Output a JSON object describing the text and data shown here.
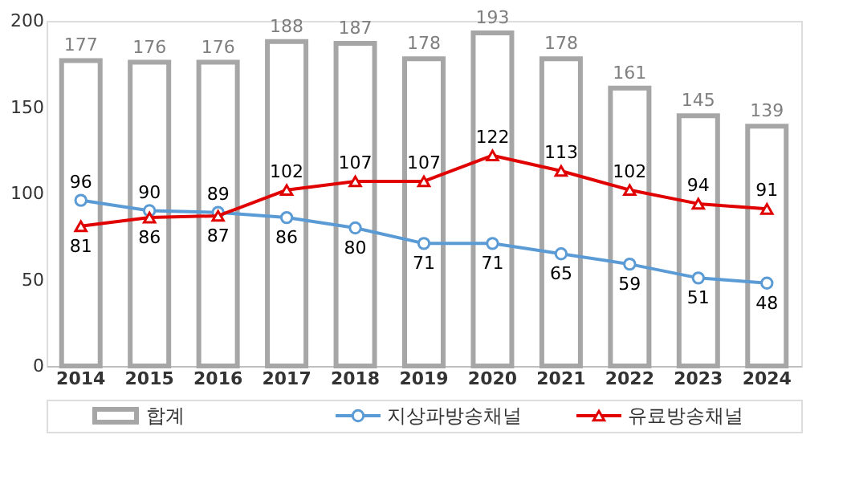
{
  "chart_data": {
    "type": "bar",
    "categories": [
      "2014",
      "2015",
      "2016",
      "2017",
      "2018",
      "2019",
      "2020",
      "2021",
      "2022",
      "2023",
      "2024"
    ],
    "series": [
      {
        "name": "합계",
        "color": "#a6a6a6",
        "values": [
          177,
          176,
          176,
          188,
          187,
          178,
          193,
          178,
          161,
          145,
          139
        ]
      },
      {
        "name": "지상파방송채널",
        "type": "line",
        "marker": "circle",
        "color": "#5b9bd5",
        "values": [
          96,
          90,
          89,
          86,
          80,
          71,
          71,
          65,
          59,
          51,
          48
        ]
      },
      {
        "name": "유료방송채널",
        "type": "line",
        "marker": "triangle",
        "color": "#e00000",
        "values": [
          81,
          86,
          87,
          102,
          107,
          107,
          122,
          113,
          102,
          94,
          91
        ]
      }
    ],
    "ylim": [
      0,
      200
    ],
    "yticks": [
      0,
      50,
      100,
      150,
      200
    ],
    "grid": false,
    "legend": "bottom",
    "data_labels": true
  }
}
